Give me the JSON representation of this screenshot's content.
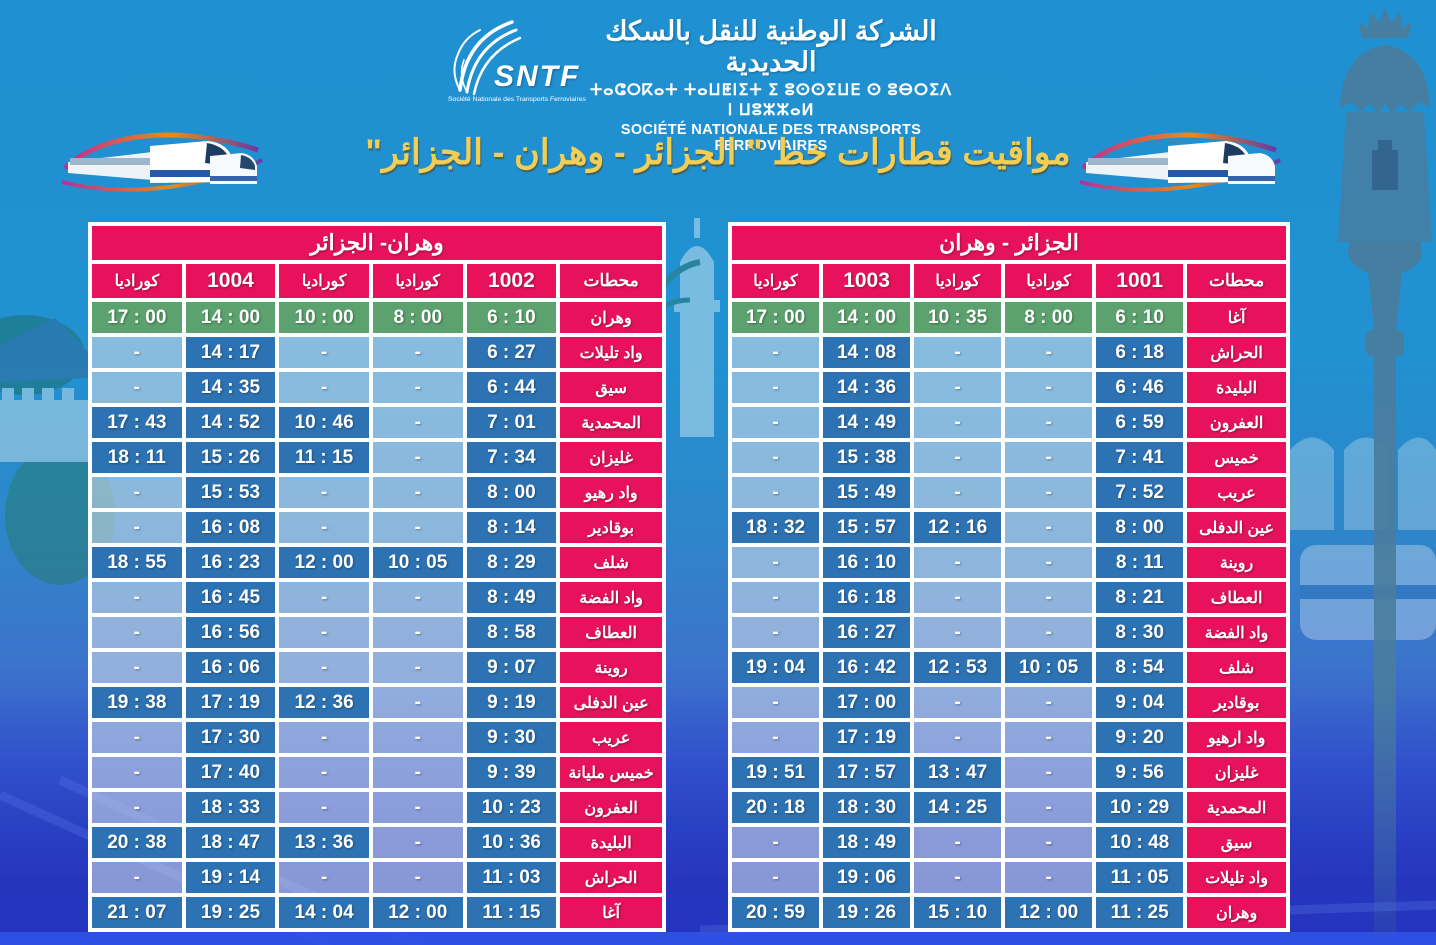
{
  "header": {
    "logo_abbr": "SNTF",
    "logo_caption": "Société Nationale des Transports Ferroviaires",
    "company_name_ar": "الشركة الوطنية للنقل بالسكك الحديدية",
    "company_name_tifinagh": "ⵜⴰⵛⵔⴽⴰⵜ ⵜⴰⵡⵟⵏⵉⵜ ⵉ ⵓⵙⵙⵉⵡⴹ ⵙ ⵓⴱⵔⵉⴷ ⵏ ⵡⵓⵣⵣⴰⵍ",
    "company_name_fr": "SOCIÉTÉ NATIONALE DES TRANSPORTS FERROVIAIRES"
  },
  "title": "مواقيت قطارات خط \" الجزائر - وهران - الجزائر\"",
  "colors": {
    "accent_pink": "#e8125c",
    "cell_blue": "#2d73b4",
    "departure_green": "#5ca26e",
    "title_yellow": "#f2ce54",
    "background_blue": "#1f90d1"
  },
  "tables": {
    "left": {
      "title": "وهران- الجزائر",
      "columns": [
        "محطات",
        "1002",
        "كوراديا",
        "كوراديا",
        "1004",
        "كوراديا"
      ],
      "rows": [
        {
          "station": "وهران",
          "times": [
            "6 : 10",
            "8 : 00",
            "10 : 00",
            "14 : 00",
            "17 : 00"
          ],
          "departure_row": true
        },
        {
          "station": "واد تليلات",
          "times": [
            "6 : 27",
            "-",
            "-",
            "14 : 17",
            "-"
          ]
        },
        {
          "station": "سيق",
          "times": [
            "6 : 44",
            "-",
            "-",
            "14 : 35",
            "-"
          ]
        },
        {
          "station": "المحمدية",
          "times": [
            "7 : 01",
            "-",
            "10 : 46",
            "14 : 52",
            "17 : 43"
          ]
        },
        {
          "station": "غليزان",
          "times": [
            "7 : 34",
            "-",
            "11 : 15",
            "15 : 26",
            "18 : 11"
          ]
        },
        {
          "station": "واد رهيو",
          "times": [
            "8 : 00",
            "-",
            "-",
            "15 : 53",
            "-"
          ]
        },
        {
          "station": "بوقادير",
          "times": [
            "8 : 14",
            "-",
            "-",
            "16 : 08",
            "-"
          ]
        },
        {
          "station": "شلف",
          "times": [
            "8 : 29",
            "10 : 05",
            "12 : 00",
            "16 : 23",
            "18 : 55"
          ]
        },
        {
          "station": "واد الفضة",
          "times": [
            "8 : 49",
            "-",
            "-",
            "16 : 45",
            "-"
          ]
        },
        {
          "station": "العطاف",
          "times": [
            "8 : 58",
            "-",
            "-",
            "16 : 56",
            "-"
          ]
        },
        {
          "station": "روينة",
          "times": [
            "9 : 07",
            "-",
            "-",
            "16 : 06",
            "-"
          ]
        },
        {
          "station": "عين الدفلى",
          "times": [
            "9 : 19",
            "-",
            "12 : 36",
            "17 : 19",
            "19 : 38"
          ]
        },
        {
          "station": "عريب",
          "times": [
            "9 : 30",
            "-",
            "-",
            "17 : 30",
            "-"
          ]
        },
        {
          "station": "خميس مليانة",
          "times": [
            "9 : 39",
            "-",
            "-",
            "17 : 40",
            "-"
          ]
        },
        {
          "station": "العفرون",
          "times": [
            "10 : 23",
            "-",
            "-",
            "18 : 33",
            "-"
          ]
        },
        {
          "station": "البليدة",
          "times": [
            "10 : 36",
            "-",
            "13 : 36",
            "18 : 47",
            "20 : 38"
          ]
        },
        {
          "station": "الحراش",
          "times": [
            "11 : 03",
            "-",
            "-",
            "19 : 14",
            "-"
          ]
        },
        {
          "station": "آغا",
          "times": [
            "11 : 15",
            "12 : 00",
            "14 : 04",
            "19 : 25",
            "21 : 07"
          ]
        }
      ]
    },
    "right": {
      "title": "الجزائر - وهران",
      "columns": [
        "محطات",
        "1001",
        "كوراديا",
        "كوراديا",
        "1003",
        "كوراديا"
      ],
      "rows": [
        {
          "station": "آغا",
          "times": [
            "6 : 10",
            "8 : 00",
            "10 : 35",
            "14 : 00",
            "17 : 00"
          ],
          "departure_row": true
        },
        {
          "station": "الحراش",
          "times": [
            "6 : 18",
            "-",
            "-",
            "14 : 08",
            "-"
          ]
        },
        {
          "station": "البليدة",
          "times": [
            "6 : 46",
            "-",
            "-",
            "14 : 36",
            "-"
          ]
        },
        {
          "station": "العفرون",
          "times": [
            "6 : 59",
            "-",
            "-",
            "14 : 49",
            "-"
          ]
        },
        {
          "station": "خميس",
          "times": [
            "7 : 41",
            "-",
            "-",
            "15 : 38",
            "-"
          ]
        },
        {
          "station": "عريب",
          "times": [
            "7 : 52",
            "-",
            "-",
            "15 : 49",
            "-"
          ]
        },
        {
          "station": "عين الدفلى",
          "times": [
            "8 : 00",
            "-",
            "12 : 16",
            "15 : 57",
            "18 : 32"
          ]
        },
        {
          "station": "روينة",
          "times": [
            "8 : 11",
            "-",
            "-",
            "16 : 10",
            "-"
          ]
        },
        {
          "station": "العطاف",
          "times": [
            "8 : 21",
            "-",
            "-",
            "16 : 18",
            "-"
          ]
        },
        {
          "station": "واد الفضة",
          "times": [
            "8 : 30",
            "-",
            "-",
            "16 : 27",
            "-"
          ]
        },
        {
          "station": "شلف",
          "times": [
            "8 : 54",
            "10 : 05",
            "12 : 53",
            "16 : 42",
            "19 : 04"
          ]
        },
        {
          "station": "بوقادير",
          "times": [
            "9 : 04",
            "-",
            "-",
            "17 : 00",
            "-"
          ]
        },
        {
          "station": "واد ارهيو",
          "times": [
            "9 : 20",
            "-",
            "-",
            "17 : 19",
            "-"
          ]
        },
        {
          "station": "غليزان",
          "times": [
            "9 : 56",
            "-",
            "13 : 47",
            "17 : 57",
            "19 : 51"
          ]
        },
        {
          "station": "المحمدية",
          "times": [
            "10 : 29",
            "-",
            "14 : 25",
            "18 : 30",
            "20 : 18"
          ]
        },
        {
          "station": "سيق",
          "times": [
            "10 : 48",
            "-",
            "-",
            "18 : 49",
            "-"
          ]
        },
        {
          "station": "واد تليلات",
          "times": [
            "11 : 05",
            "-",
            "-",
            "19 : 06",
            "-"
          ]
        },
        {
          "station": "وهران",
          "times": [
            "11 : 25",
            "12 : 00",
            "15 : 10",
            "19 : 26",
            "20 : 59"
          ]
        }
      ]
    }
  }
}
